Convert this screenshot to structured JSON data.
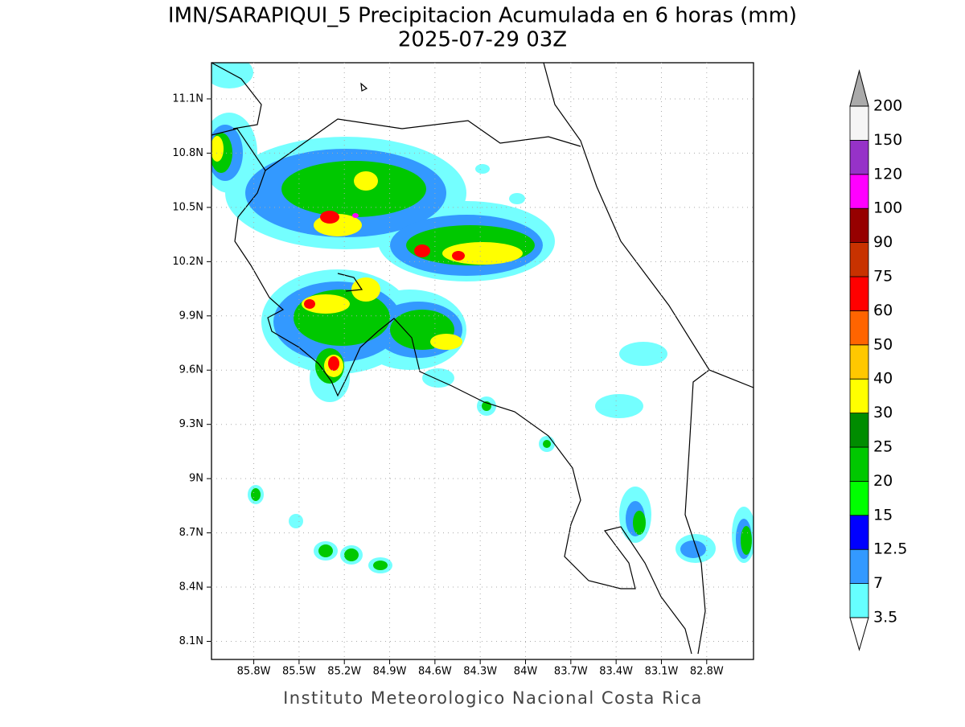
{
  "chart_data": {
    "type": "map",
    "title": "IMN/SARAPIQUI_5 Precipitacion Acumulada en 6 horas (mm)",
    "subtitle": "2025-07-29 03Z",
    "footer": "Instituto Meteorologico Nacional Costa Rica",
    "xlim": [
      -86.08,
      -82.49
    ],
    "ylim": [
      8.0,
      11.3
    ],
    "xticks": [
      {
        "value": -85.8,
        "label": "85.8W"
      },
      {
        "value": -85.5,
        "label": "85.5W"
      },
      {
        "value": -85.2,
        "label": "85.2W"
      },
      {
        "value": -84.9,
        "label": "84.9W"
      },
      {
        "value": -84.6,
        "label": "84.6W"
      },
      {
        "value": -84.3,
        "label": "84.3W"
      },
      {
        "value": -84.0,
        "label": "84W"
      },
      {
        "value": -83.7,
        "label": "83.7W"
      },
      {
        "value": -83.4,
        "label": "83.4W"
      },
      {
        "value": -83.1,
        "label": "83.1W"
      },
      {
        "value": -82.8,
        "label": "82.8W"
      }
    ],
    "yticks": [
      {
        "value": 8.1,
        "label": "8.1N"
      },
      {
        "value": 8.4,
        "label": "8.4N"
      },
      {
        "value": 8.7,
        "label": "8.7N"
      },
      {
        "value": 9.0,
        "label": "9N"
      },
      {
        "value": 9.3,
        "label": "9.3N"
      },
      {
        "value": 9.6,
        "label": "9.6N"
      },
      {
        "value": 9.9,
        "label": "9.9N"
      },
      {
        "value": 10.2,
        "label": "10.2N"
      },
      {
        "value": 10.5,
        "label": "10.5N"
      },
      {
        "value": 10.8,
        "label": "10.8N"
      },
      {
        "value": 11.1,
        "label": "11.1N"
      }
    ],
    "grid": true,
    "colorbar": {
      "levels": [
        3.5,
        7,
        12.5,
        15,
        20,
        25,
        30,
        40,
        50,
        60,
        75,
        90,
        100,
        120,
        150,
        200
      ],
      "colors": [
        "#66ffff",
        "#3399ff",
        "#0000ff",
        "#00ff00",
        "#00c800",
        "#008c00",
        "#ffff00",
        "#ffc800",
        "#ff6400",
        "#ff0000",
        "#c83200",
        "#960000",
        "#ff00ff",
        "#9632c8",
        "#f5f5f5"
      ],
      "under_color": "#ffffff",
      "over_color": "#aaaaaa"
    }
  }
}
